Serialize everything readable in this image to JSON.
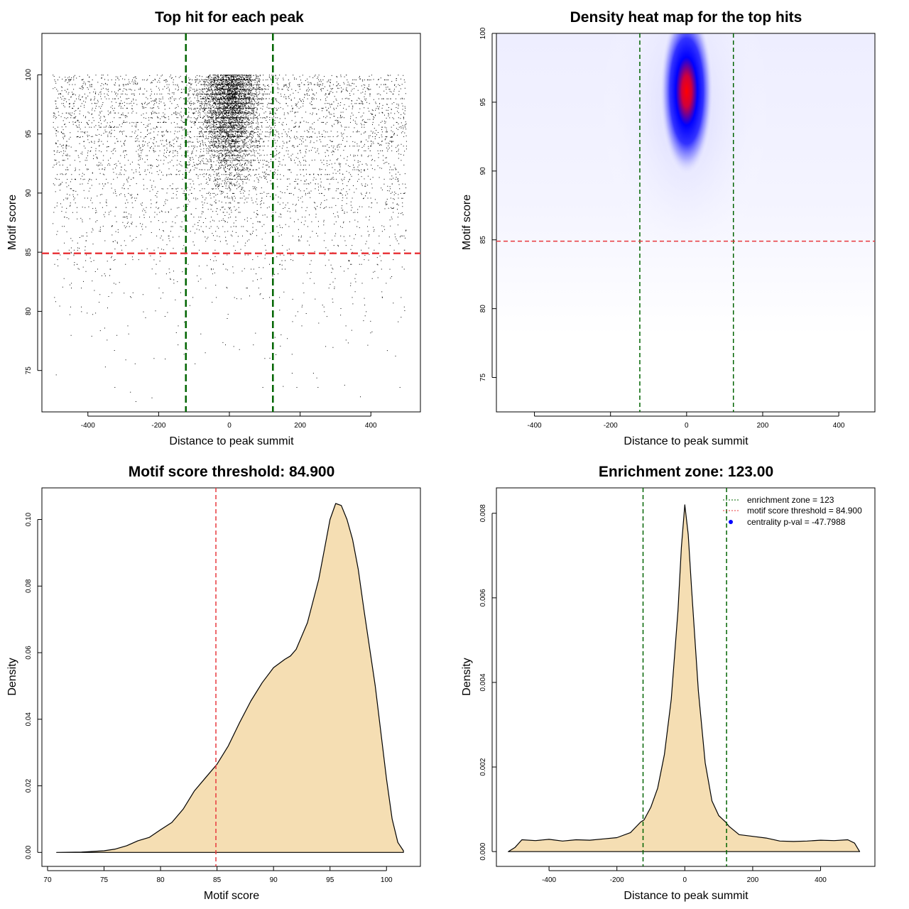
{
  "chart_data": [
    {
      "id": "scatter",
      "type": "scatter",
      "title": "Top hit for each peak",
      "xlabel": "Distance to peak summit",
      "ylabel": "Motif score",
      "xlim": [
        -530,
        540
      ],
      "ylim": [
        71.5,
        103.5
      ],
      "xticks": [
        -400,
        -200,
        0,
        200,
        400
      ],
      "yticks": [
        75,
        80,
        85,
        90,
        95,
        100
      ],
      "vlines": [
        -123,
        123
      ],
      "hline": 84.9,
      "colors": {
        "points": "#000000",
        "vline": "#006400",
        "hline": "#e8383d"
      },
      "points_summary": {
        "n_approx": 9000,
        "central_sd": 40,
        "x_range": [
          -500,
          500
        ],
        "y_range": [
          72.3,
          100
        ]
      }
    },
    {
      "id": "heatmap",
      "type": "heatmap",
      "title": "Density heat map for the top hits",
      "xlabel": "Distance to peak summit",
      "ylabel": "Motif score",
      "xlim": [
        -500,
        495
      ],
      "ylim": [
        72.5,
        100
      ],
      "xticks": [
        -400,
        -200,
        0,
        200,
        400
      ],
      "yticks": [
        75,
        80,
        85,
        90,
        95,
        100
      ],
      "vlines": [
        -123,
        123
      ],
      "hline": 84.9,
      "hotspot": {
        "x": 0,
        "y": 95.8
      },
      "colors": {
        "low": "#ffffff",
        "mid": "#0000ff",
        "high": "#ff0000",
        "vline": "#006400",
        "hline": "#e8383d"
      }
    },
    {
      "id": "score-density",
      "type": "area",
      "title": "Motif score threshold: 84.900",
      "xlabel": "Motif score",
      "ylabel": "Density",
      "xlim": [
        69.5,
        103
      ],
      "ylim": [
        -0.0042,
        0.1095
      ],
      "xticks": [
        70,
        75,
        80,
        85,
        90,
        95,
        100
      ],
      "yticks": [
        0.0,
        0.02,
        0.04,
        0.06,
        0.08,
        0.1
      ],
      "ytick_labels": [
        "0.00",
        "0.02",
        "0.04",
        "0.06",
        "0.08",
        "0.10"
      ],
      "vline": 84.9,
      "x": [
        70.8,
        73,
        75,
        76,
        77,
        78,
        79,
        80,
        81,
        82,
        83,
        84,
        85,
        86,
        87,
        88,
        89,
        90,
        91,
        91.5,
        92,
        93,
        94,
        94.5,
        95,
        95.5,
        96,
        96.5,
        97,
        97.5,
        98,
        99,
        100,
        100.5,
        101,
        101.5
      ],
      "y": [
        0.0,
        0.0001,
        0.0005,
        0.001,
        0.002,
        0.0035,
        0.0045,
        0.0068,
        0.009,
        0.013,
        0.0185,
        0.0225,
        0.0265,
        0.032,
        0.039,
        0.0455,
        0.051,
        0.0555,
        0.058,
        0.059,
        0.061,
        0.069,
        0.082,
        0.091,
        0.1,
        0.1048,
        0.1042,
        0.1,
        0.094,
        0.085,
        0.073,
        0.05,
        0.022,
        0.01,
        0.003,
        0.0005
      ],
      "colors": {
        "fill": "#f5deb3",
        "line": "#000000",
        "vline": "#e8383d"
      }
    },
    {
      "id": "enrichment-density",
      "type": "area",
      "title": "Enrichment zone: 123.00",
      "xlabel": "Distance to peak summit",
      "ylabel": "Density",
      "xlim": [
        -555,
        560
      ],
      "ylim": [
        -0.00035,
        0.0086
      ],
      "xticks": [
        -400,
        -200,
        0,
        200,
        400
      ],
      "yticks": [
        0.0,
        0.002,
        0.004,
        0.006,
        0.008
      ],
      "ytick_labels": [
        "0.000",
        "0.002",
        "0.004",
        "0.006",
        "0.008"
      ],
      "vlines": [
        -123,
        123
      ],
      "x": [
        -520,
        -500,
        -480,
        -440,
        -400,
        -360,
        -320,
        -280,
        -240,
        -200,
        -160,
        -130,
        -120,
        -100,
        -80,
        -60,
        -40,
        -20,
        -10,
        0,
        10,
        20,
        40,
        60,
        80,
        100,
        120,
        130,
        160,
        200,
        240,
        280,
        320,
        360,
        400,
        440,
        480,
        500,
        515
      ],
      "y": [
        0.0,
        0.0001,
        0.00028,
        0.00026,
        0.00029,
        0.00025,
        0.00028,
        0.00027,
        0.0003,
        0.00033,
        0.00045,
        0.0007,
        0.00075,
        0.00105,
        0.0015,
        0.0023,
        0.0036,
        0.0057,
        0.0072,
        0.0082,
        0.0075,
        0.0062,
        0.0038,
        0.0021,
        0.0012,
        0.00085,
        0.0007,
        0.0006,
        0.0004,
        0.00036,
        0.00032,
        0.00025,
        0.00024,
        0.00025,
        0.00027,
        0.00026,
        0.00028,
        0.0002,
        0.0
      ],
      "legend": [
        {
          "label": "enrichment zone = 123",
          "style": "dotted",
          "color": "#006400"
        },
        {
          "label": "motif score threshold = 84.900",
          "style": "dotted",
          "color": "#e8383d"
        },
        {
          "label": "centrality p-val = -47.7988",
          "style": "dot",
          "color": "#0000ff"
        }
      ],
      "legend_position": "top-right",
      "colors": {
        "fill": "#f5deb3",
        "line": "#000000",
        "vline": "#006400"
      }
    }
  ]
}
